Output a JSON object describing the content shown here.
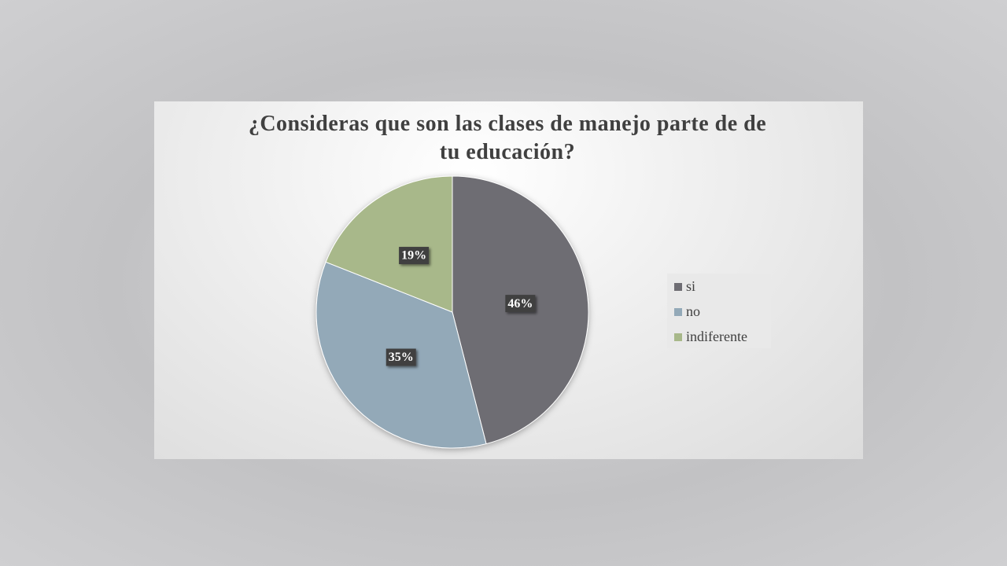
{
  "chart_data": {
    "type": "pie",
    "title": "¿Consideras que son las clases de manejo parte de de tu educación?",
    "categories": [
      "si",
      "no",
      "indiferente"
    ],
    "values": [
      46,
      35,
      19
    ],
    "value_labels": [
      "46%",
      "35%",
      "19%"
    ],
    "colors": [
      "#6e6d73",
      "#93a9b8",
      "#a8b88a"
    ],
    "legend": "right"
  }
}
